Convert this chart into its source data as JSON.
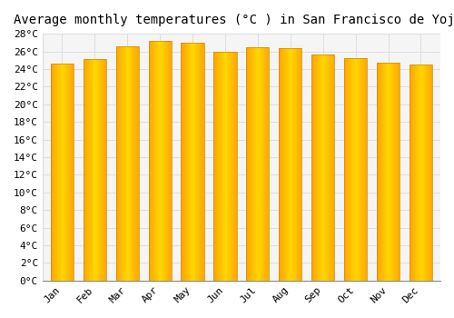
{
  "title": "Average monthly temperatures (°C ) in San Francisco de Yojoa",
  "months": [
    "Jan",
    "Feb",
    "Mar",
    "Apr",
    "May",
    "Jun",
    "Jul",
    "Aug",
    "Sep",
    "Oct",
    "Nov",
    "Dec"
  ],
  "values": [
    24.6,
    25.1,
    26.6,
    27.2,
    27.0,
    25.9,
    26.5,
    26.4,
    25.6,
    25.2,
    24.7,
    24.5
  ],
  "ylim": [
    0,
    28
  ],
  "yticks": [
    0,
    2,
    4,
    6,
    8,
    10,
    12,
    14,
    16,
    18,
    20,
    22,
    24,
    26,
    28
  ],
  "ytick_labels": [
    "0°C",
    "2°C",
    "4°C",
    "6°C",
    "8°C",
    "10°C",
    "12°C",
    "14°C",
    "16°C",
    "18°C",
    "20°C",
    "22°C",
    "24°C",
    "26°C",
    "28°C"
  ],
  "bar_color_center": "#FFD700",
  "bar_color_edge": "#FFA500",
  "background_color": "#FFFFFF",
  "plot_bg_color": "#F5F5F5",
  "grid_color": "#DDDDDD",
  "title_fontsize": 10,
  "tick_fontsize": 8,
  "bar_edge_color": "#CC8800",
  "bar_width": 0.7
}
